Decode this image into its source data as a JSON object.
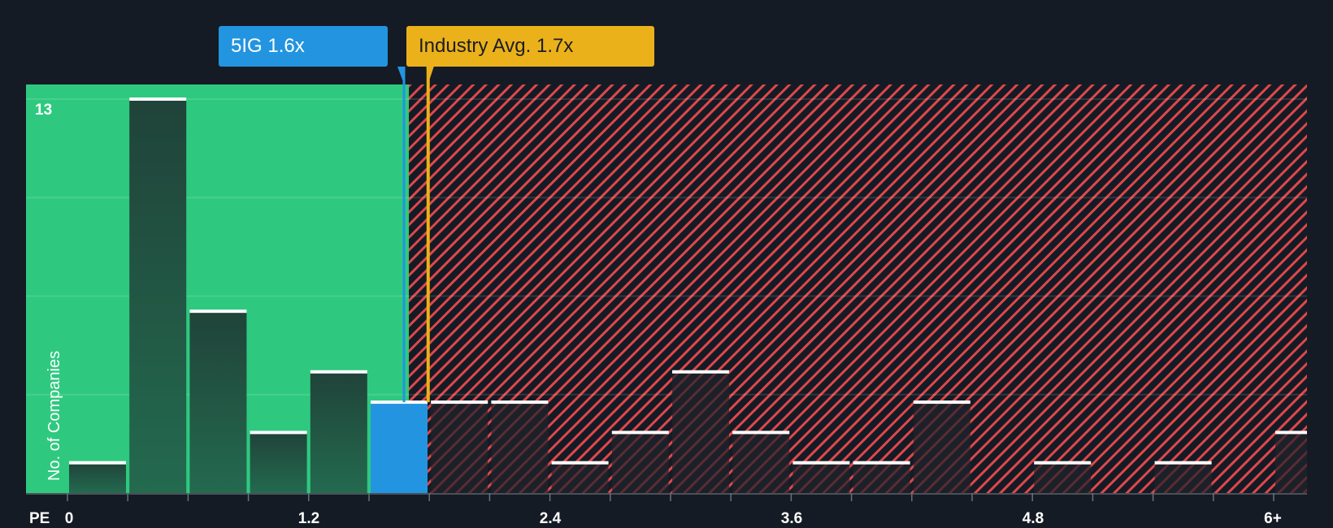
{
  "company_callout": {
    "label": "5IG 1.6x",
    "color": "#2394e0"
  },
  "industry_callout": {
    "label": "Industry Avg. 1.7x",
    "color": "#ebb11a"
  },
  "axis": {
    "x_prefix": "PE",
    "y_label": "No. of Companies",
    "y_max_label": "13"
  },
  "colors": {
    "background": "#151b24",
    "undervalued": "#2ec97f",
    "overvalued_stripe": "#e0474c",
    "bar": "#224a3f",
    "highlight_bar": "#2394e0"
  },
  "chart_data": {
    "type": "bar",
    "title": "",
    "xlabel": "PE",
    "ylabel": "No. of Companies",
    "x_tick_labels": [
      "0",
      "1.2",
      "2.4",
      "3.6",
      "4.8",
      "6+"
    ],
    "x_tick_values": [
      0,
      1.2,
      2.4,
      3.6,
      4.8,
      6
    ],
    "bin_width": 0.3,
    "categories": [
      "0-0.3",
      "0.3-0.6",
      "0.6-0.9",
      "0.9-1.2",
      "1.2-1.5",
      "1.5-1.8",
      "1.8-2.1",
      "2.1-2.4",
      "2.4-2.7",
      "2.7-3.0",
      "3.0-3.3",
      "3.3-3.6",
      "3.6-3.9",
      "3.9-4.2",
      "4.2-4.5",
      "4.5-4.8",
      "4.8-5.1",
      "5.1-5.4",
      "5.4-5.7",
      "5.7-6.0",
      "6+"
    ],
    "values": [
      1,
      13,
      6,
      2,
      4,
      3,
      3,
      3,
      1,
      2,
      4,
      2,
      1,
      1,
      3,
      0,
      1,
      0,
      1,
      0,
      2
    ],
    "highlight_index": 5,
    "ylim": [
      0,
      13
    ],
    "company_value": 1.6,
    "industry_avg": 1.7,
    "annotations": [
      "5IG 1.6x",
      "Industry Avg. 1.7x"
    ],
    "grid": true
  }
}
